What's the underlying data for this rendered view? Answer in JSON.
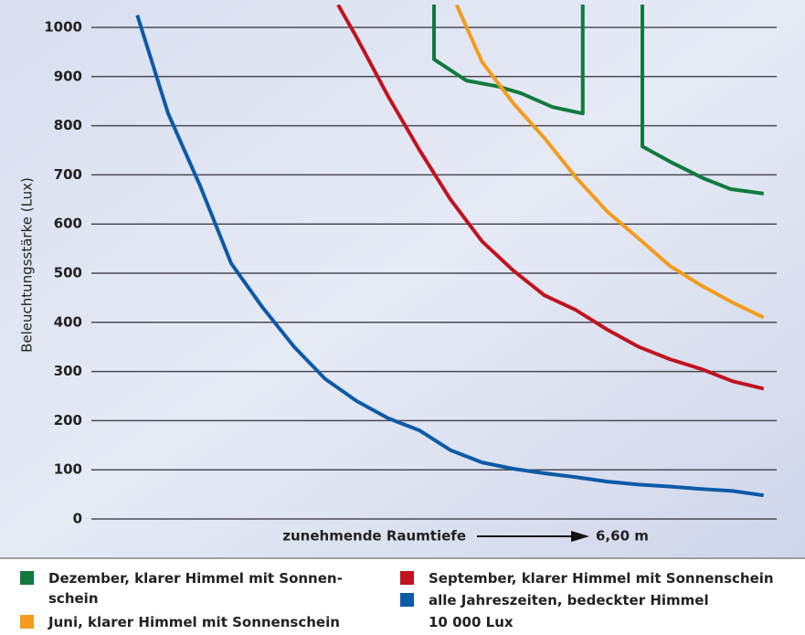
{
  "chart_data": {
    "type": "line",
    "ylabel": "Beleuchtungsstärke (Lux)",
    "xlabel": "zunehmende Raumtiefe",
    "xlabel_end": "6,60 m",
    "legend_note": "10 000 Lux",
    "ylim": [
      0,
      1000
    ],
    "yticks": [
      0,
      100,
      200,
      300,
      400,
      500,
      600,
      700,
      800,
      900,
      1000
    ],
    "xlim": [
      0,
      100
    ],
    "grid": true,
    "series": [
      {
        "name": "Dezember, klarer Himmel mit Sonnen-schein",
        "color": "#0f7a3c",
        "x": [
          50,
          50,
          54.7,
          59.3,
          62.7,
          67.3,
          71.7,
          71.7,
          null,
          80.4,
          80.4,
          84.7,
          89.3,
          93.3,
          98.1
        ],
        "values": [
          1050,
          935,
          892,
          880,
          866,
          838,
          825,
          1050,
          null,
          1050,
          758,
          725,
          693,
          671,
          662
        ]
      },
      {
        "name": "September, klarer Himmel mit Sonnenschein",
        "color": "#c0131f",
        "x": [
          36,
          38.7,
          43.3,
          47.9,
          52.4,
          57,
          61.6,
          66.1,
          70.7,
          75.3,
          79.9,
          84.4,
          89,
          93.6,
          98.1
        ],
        "values": [
          1046,
          980,
          860,
          750,
          650,
          565,
          505,
          455,
          425,
          385,
          350,
          325,
          305,
          280,
          265
        ]
      },
      {
        "name": "Juni, klarer Himmel mit Sonnenschein",
        "color": "#f39c1d",
        "x": [
          53.3,
          57,
          61.6,
          66.1,
          70.7,
          75.3,
          79.9,
          84.4,
          89,
          93.6,
          98.1
        ],
        "values": [
          1046,
          930,
          845,
          775,
          695,
          625,
          570,
          515,
          475,
          440,
          410
        ]
      },
      {
        "name": "alle Jahreszeiten, bedeckter Himmel",
        "color": "#0d5aa7",
        "x": [
          6.7,
          11.2,
          15.8,
          20.4,
          25,
          29.6,
          34.1,
          38.7,
          43.3,
          47.9,
          52.4,
          57,
          61.6,
          66.1,
          70.7,
          75.3,
          79.9,
          84.4,
          89,
          93.6,
          98.1
        ],
        "values": [
          1025,
          825,
          680,
          520,
          430,
          350,
          285,
          240,
          205,
          180,
          140,
          115,
          102,
          93,
          85,
          76,
          70,
          66,
          61,
          57,
          48
        ]
      }
    ]
  }
}
